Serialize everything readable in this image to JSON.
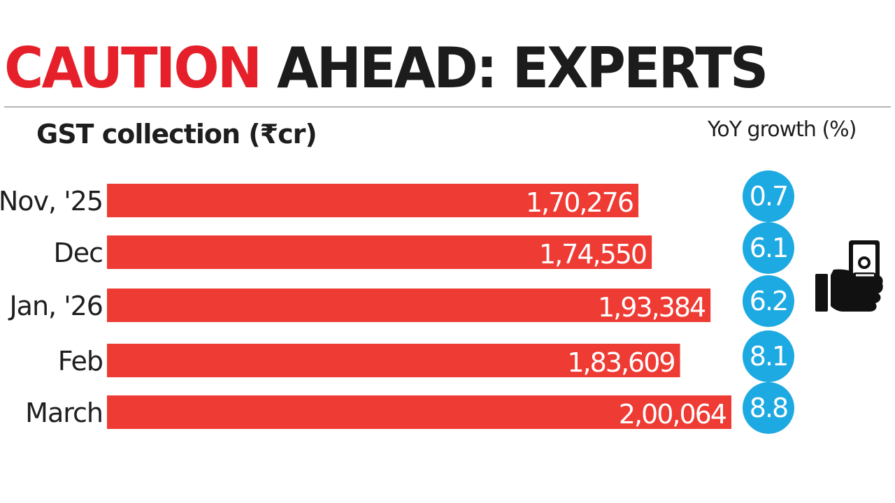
{
  "headline": {
    "part1": "CAUTION",
    "part2": "AHEAD: EXPERTS"
  },
  "subtitle": "GST collection (₹cr)",
  "growth_title": "YoY growth (%)",
  "colors": {
    "accent_red": "#e5202a",
    "bar_red": "#ee3b34",
    "badge_blue": "#1da9e1",
    "text_dark": "#1e1e1e"
  },
  "icon": "hand-holding-money-icon",
  "chart_data": {
    "type": "bar",
    "orientation": "horizontal",
    "title": "CAUTION AHEAD: EXPERTS",
    "subtitle": "GST collection (₹cr)",
    "categories": [
      "Nov, '25",
      "Dec",
      "Jan, '26",
      "Feb",
      "March"
    ],
    "values": [
      170276,
      174550,
      193384,
      183609,
      200064
    ],
    "value_labels": [
      "1,70,276",
      "1,74,550",
      "1,93,384",
      "1,83,609",
      "2,00,064"
    ],
    "yoy_growth_label": "YoY growth (%)",
    "yoy_growth": [
      0.7,
      6.1,
      6.2,
      8.1,
      8.8
    ],
    "yoy_growth_labels": [
      "0.7",
      "6.1",
      "6.2",
      "8.1",
      "8.8"
    ],
    "xlim": [
      0,
      200064
    ]
  }
}
